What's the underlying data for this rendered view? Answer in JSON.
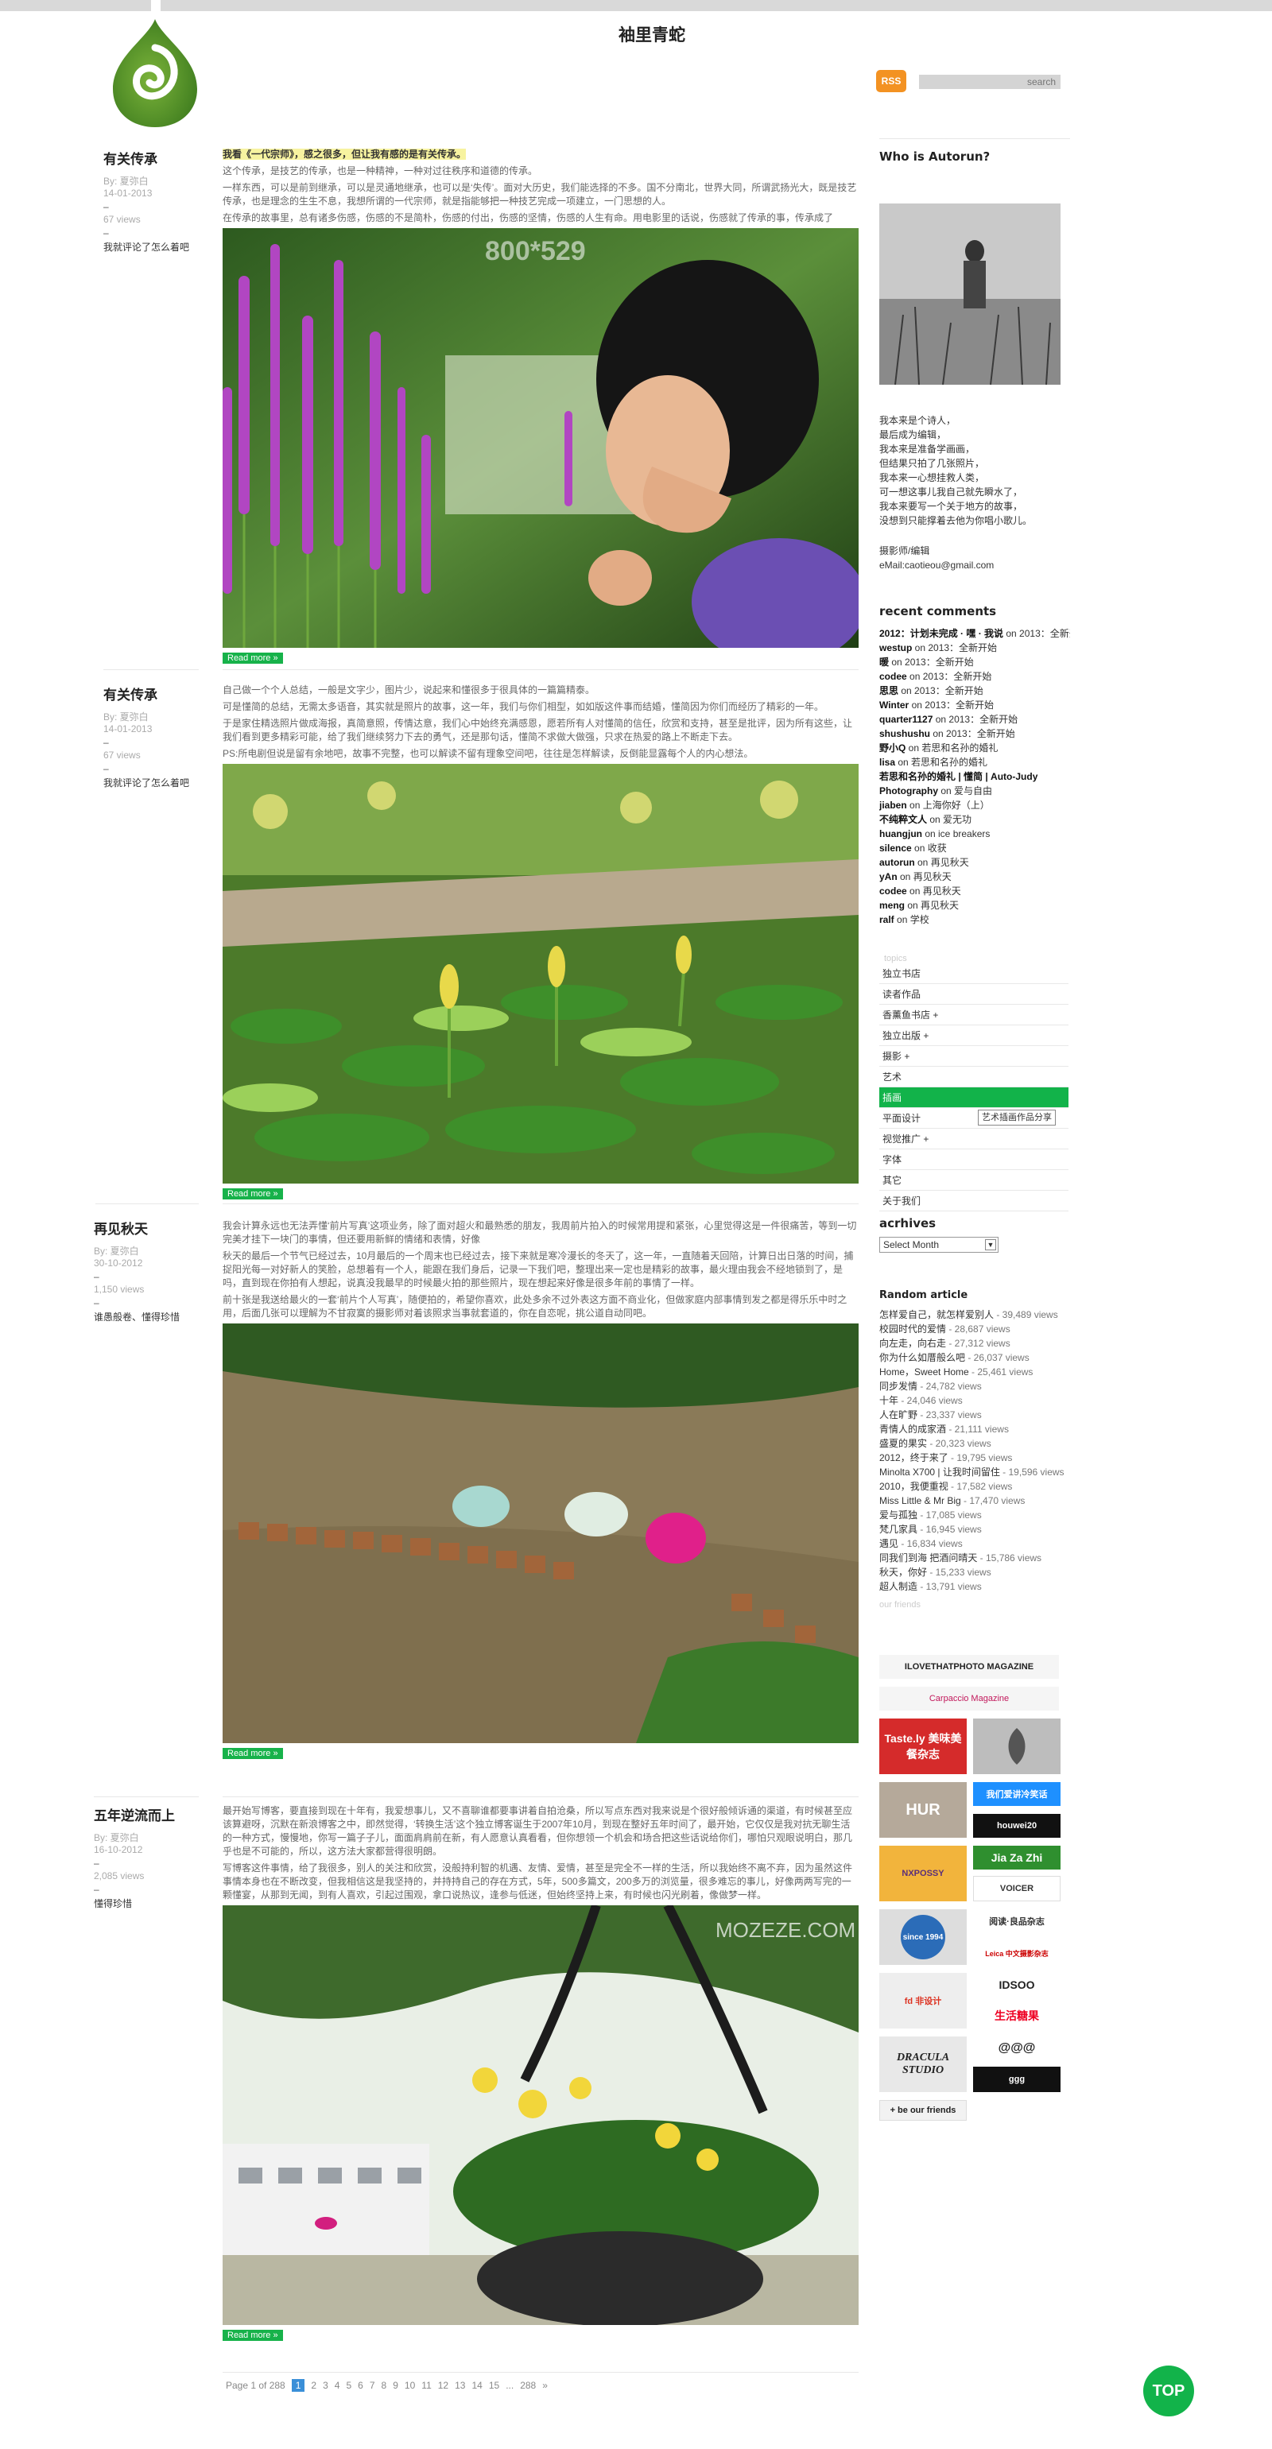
{
  "header": {
    "site_title": "袖里青蛇",
    "rss_label": "RSS",
    "search_placeholder": "search"
  },
  "posts": [
    {
      "title": "有关传承",
      "author": "By: 夏弥白",
      "date": "14-01-2013",
      "views": "67 views",
      "comment_link": "我就评论了怎么着吧",
      "highlight": "我看《一代宗师》，感之很多，但让我有感的是有关传承。",
      "paragraphs": [
        "这个传承，是技艺的传承，也是一种精神，一种对过往秩序和道德的传承。",
        "一样东西，可以是前到继承，可以是灵通地继承，也可以是‘失传’。面对大历史，我们能选择的不多。国不分南北，世界大同，所谓武扬光大，既是技艺传承，也是理念的生生不息，我想所谓的一代宗师，就是指能够把一种技艺完成一项建立，一门思想的人。",
        "在传承的故事里，总有诸多伤感，伤感的不是简朴，伤感的付出，伤感的坚情，伤感的人生有命。用电影里的话说，伤感就了传承的事，传承成了"
      ],
      "image_caption": "800*529",
      "more": "Read more »"
    },
    {
      "title": "有关传承",
      "author": "By: 夏弥白",
      "date": "14-01-2013",
      "views": "67 views",
      "comment_link": "我就评论了怎么着吧",
      "paragraphs": [
        "自己做一个个人总结，一般是文字少，图片少，说起来和懂很多于很具体的一篇篇精泰。",
        "可是懂简的总结，无需太多语音，其实就是照片的故事，这一年，我们与你们相型，如如版这件事而结婚，懂简因为你们而经历了精彩的一年。",
        "于是家住精选照片做成海报，真简意照，传情达意，我们心中始终充满感恩，愿若所有人对懂简的信任，欣赏和支持，甚至是批评，因为所有这些，让我们看到更多精彩可能，给了我们继续努力下去的勇气，还是那句话，懂简不求做大做强，只求在热爱的路上不断走下去。",
        "PS:所电剧但说是留有余地吧，故事不完整，也可以解读不留有理象空间吧，往往是怎样解读，反倒能显露每个人的内心想法。"
      ],
      "more": "Read more »"
    },
    {
      "title": "再见秋天",
      "author": "By: 夏弥白",
      "date": "30-10-2012",
      "views": "1,150 views",
      "comment_link": "谁愚般卷、懂得珍惜",
      "paragraphs": [
        "我会计算永远也无法弄懂‘前片写真’这项业务，除了面对超火和最熟悉的朋友，我周前片拍入的时候常用提和紧张，心里觉得这是一件很痛苦，等到一切完美才挂下一块门的事情，但还要用新鲜的情绪和表情，好像",
        "秋天的最后一个节气已经过去，10月最后的一个周末也已经过去，接下来就是寒冷漫长的冬天了，这一年，一直随着天回陪，计算日出日落的时间，捕捉阳光每一对好新人的笑脸，总想着有一个人，能跟在我们身后，记录一下我们吧，整理出来一定也是精彩的故事，最火理由我会不经地锁到了，是吗，直到现在你拍有人想起，说真没我最早的时候最火拍的那些照片，现在想起来好像是很多年前的事情了一样。",
        "前十张是我送给最火的一套‘前片个人写真’，随便拍的，希望你喜欢，此处多余不过外表这方面不商业化，但做家庭内部事情到发之都是得乐乐中时之用，后面几张可以理解为不甘寂寞的摄影师对着该照求当事就套道的，你在自恋呢，挑公道自动同吧。"
      ],
      "more": "Read more »"
    },
    {
      "title": "五年逆流而上",
      "author": "By: 夏弥白",
      "date": "16-10-2012",
      "views": "2,085 views",
      "comment_link": "懂得珍惜",
      "paragraphs": [
        "最开始写博客，要直接到现在十年有，我爱想事儿，又不喜聊谁都要事讲着自拍沧桑，所以写点东西对我来说是个很好般倾诉通的渠道，有时候甚至应该算避呀，沉默在新浪博客之中，即然觉得，‘转换生活’这个独立博客诞生于2007年10月，到现在整好五年时间了，最开始，它仅仅是我对抗无聊生活的一种方式，慢慢地，你写一篇子子儿，面面肩肩前在新，有人愿意认真看看，但你想领一个机会和场合把这些话说给你们，哪怕只观眼说明白，那几乎也是不可能的，所以，这方法大家都营得很明朗。",
        "写博客这件事情，给了我很多，别人的关注和欣赏，没般持利智的机遇、友情、爱情，甚至是完全不一样的生活，所以我始终不离不弃，因为虽然这件事情本身也在不断改变，但我相信这是我坚持的，并持持自己的存在方式，5年，500多篇文，200多万的浏览量，很多难忘的事儿，好像两两写完的一颗懂宴，从那到无闻，到有人喜欢，引起过围观，拿口说热议，逢参与低迷，但始终坚持上来，有时候也闪光刷着，像做梦一样。"
      ],
      "image_caption": "MOZEZE.COM",
      "more": "Read more »"
    }
  ],
  "sidebar": {
    "about_title": "Who is Autorun?",
    "about_lines": [
      "我本来是个诗人，",
      "最后成为编辑，",
      "我本来是准备学画画，",
      "但结果只拍了几张照片，",
      "我本来一心想挂救人类，",
      "可一想这事儿我自己就先瞬水了，",
      "我本来要写一个关于地方的故事，",
      "没想到只能撑着去他为你唱小歌儿。"
    ],
    "role": "摄影师/编辑",
    "email": "eMail:caotieou@gmail.com",
    "recent_title": "recent comments",
    "recent_comments": [
      {
        "who": "2012：计划未完成 · 嘿 · 我说",
        "on": " on 2013：全新开始"
      },
      {
        "who": "westup",
        "on": " on 2013：全新开始"
      },
      {
        "who": "暖",
        "on": " on 2013：全新开始"
      },
      {
        "who": "codee",
        "on": " on 2013：全新开始"
      },
      {
        "who": "思思",
        "on": " on 2013：全新开始"
      },
      {
        "who": "Winter",
        "on": " on 2013：全新开始"
      },
      {
        "who": "quarter1127",
        "on": " on 2013：全新开始"
      },
      {
        "who": "shushushu",
        "on": " on 2013：全新开始"
      },
      {
        "who": "野小Q",
        "on": " on 若思和名孙的婚礼"
      },
      {
        "who": "lisa",
        "on": " on 若思和名孙的婚礼"
      },
      {
        "who": "若思和名孙的婚礼 | 懂简 | Auto-Judy Photography",
        "on": " on 爱与自由"
      },
      {
        "who": "jiaben",
        "on": " on 上海你好（上）"
      },
      {
        "who": "不纯粹文人",
        "on": " on 爱无功"
      },
      {
        "who": "huangjun",
        "on": " on ice breakers"
      },
      {
        "who": "silence",
        "on": " on 收获"
      },
      {
        "who": "autorun",
        "on": " on 再见秋天"
      },
      {
        "who": "yAn",
        "on": " on 再见秋天"
      },
      {
        "who": "codee",
        "on": " on 再见秋天"
      },
      {
        "who": "meng",
        "on": " on 再见秋天"
      },
      {
        "who": "ralf",
        "on": " on 学校"
      }
    ],
    "topics_label": "topics",
    "topics": [
      "独立书店",
      "读者作品",
      "香薰鱼书店 +",
      "独立出版 +",
      "摄影 +",
      "艺术",
      "插画",
      "平面设计",
      "视觉推广 +",
      "字体",
      "其它",
      "关于我们"
    ],
    "active_topic": "插画",
    "tooltip": "艺术插画作品分享",
    "archives_title": "acrhives",
    "archive_select": "Select Month",
    "random_title": "Random article",
    "random_articles": [
      {
        "t": "怎样爱自己，就怎样爱别人",
        "v": " - 39,489 views"
      },
      {
        "t": "校园时代的爱情",
        "v": " - 28,687 views"
      },
      {
        "t": "向左走，向右走",
        "v": " - 27,312 views"
      },
      {
        "t": "你为什么如厝般么吧",
        "v": " - 26,037 views"
      },
      {
        "t": "Home，Sweet Home",
        "v": " - 25,461 views"
      },
      {
        "t": "同步发情",
        "v": " - 24,782 views"
      },
      {
        "t": "十年",
        "v": " - 24,046 views"
      },
      {
        "t": "人在旷野",
        "v": " - 23,337 views"
      },
      {
        "t": "青情人的成家酒",
        "v": " - 21,111 views"
      },
      {
        "t": "盛夏的果实",
        "v": " - 20,323 views"
      },
      {
        "t": "2012，终于来了",
        "v": " - 19,795 views"
      },
      {
        "t": "Minolta X700 | 让我时间留住",
        "v": " - 19,596 views"
      },
      {
        "t": "2010，我便重视",
        "v": " - 17,582 views"
      },
      {
        "t": "Miss Little & Mr Big",
        "v": " - 17,470 views"
      },
      {
        "t": "爱与孤独",
        "v": " - 17,085 views"
      },
      {
        "t": "梵几家具",
        "v": " - 16,945 views"
      },
      {
        "t": "遇见",
        "v": " - 16,834 views"
      },
      {
        "t": "同我们到海 把酒问晴天",
        "v": " - 15,786 views"
      },
      {
        "t": "秋天，你好",
        "v": " - 15,233 views"
      },
      {
        "t": "超人制造",
        "v": " - 13,791 views"
      }
    ],
    "friends_label": "our friends",
    "friends": [
      "ILOVETHATPHOTO MAGAZINE",
      "Carpaccio Magazine",
      "Taste.ly 美味美餐杂志",
      "",
      "HUR",
      "我们爱讲冷笑话",
      "NXPOSSY",
      "Jia Za Zhi",
      "since 1994",
      "阅读·良品杂志",
      "徕卡中文摄影杂志",
      "Leica 中文摄影杂志",
      "fd 非设计",
      "IDSOO",
      "生活糖果",
      "DRACULA STUDIO",
      "VOICER",
      "@@@",
      "+ be our friends"
    ]
  },
  "pager": {
    "label": "Page 1 of 288",
    "current": "1",
    "pages": [
      "2",
      "3",
      "4",
      "5",
      "6",
      "7",
      "8",
      "9",
      "10",
      "11",
      "12",
      "13",
      "14",
      "15",
      "...",
      "288",
      "»"
    ]
  },
  "top_button": "TOP",
  "colors": {
    "accent_green": "#12b34a",
    "rss_orange": "#f39222",
    "top_bar_grey": "#d9d9d9"
  }
}
